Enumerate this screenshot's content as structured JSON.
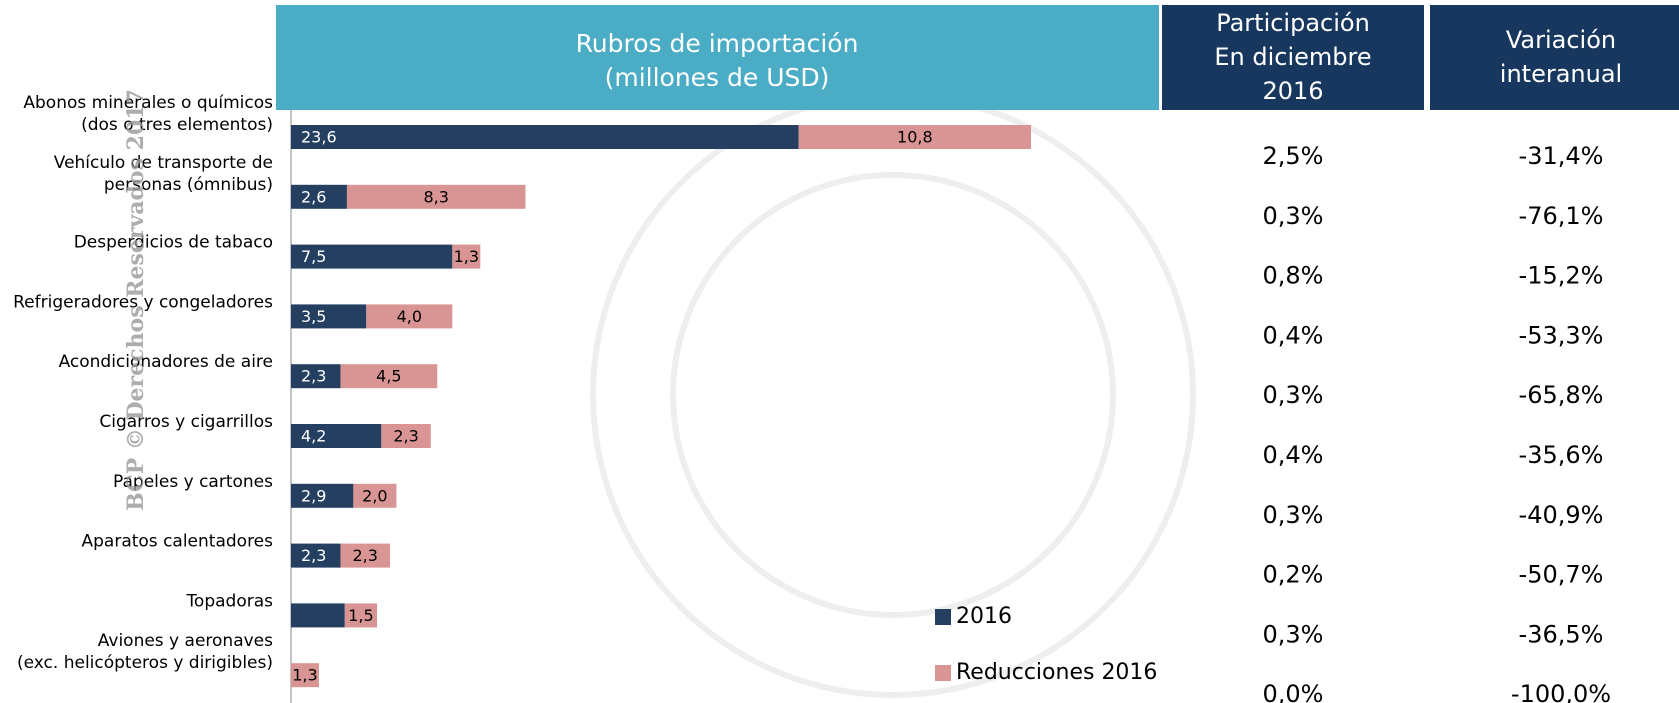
{
  "chart_data": {
    "type": "stacked-barh",
    "title": [
      "Rubros de importación",
      "(millones de USD)"
    ],
    "categories": [
      [
        "Abonos minerales o químicos",
        "(dos o tres elementos)"
      ],
      [
        "Vehículo de transporte de",
        "personas (ómnibus)"
      ],
      [
        "Desperdicios de tabaco"
      ],
      [
        "Refrigeradores y congeladores"
      ],
      [
        "Acondicionadores de aire"
      ],
      [
        "Cigarros y cigarrillos"
      ],
      [
        "Papeles y cartones"
      ],
      [
        "Aparatos calentadores"
      ],
      [
        "Topadoras"
      ],
      [
        "Aviones y aeronaves",
        "(exc. helicópteros y dirigibles)"
      ]
    ],
    "series": [
      {
        "name": "2016",
        "color": "#243f60",
        "values": [
          23.6,
          2.6,
          7.5,
          3.5,
          2.3,
          4.2,
          2.9,
          2.3,
          2.5,
          0
        ],
        "value_labels": [
          "23,6",
          "2,6",
          "7,5",
          "3,5",
          "2,3",
          "4,2",
          "2,9",
          "2,3",
          null,
          null
        ]
      },
      {
        "name": "Reducciones 2016",
        "color": "#d99594",
        "values": [
          10.8,
          8.3,
          1.3,
          4.0,
          4.5,
          2.3,
          2.0,
          2.3,
          1.5,
          1.3
        ],
        "value_labels": [
          "10,8",
          "8,3",
          "1,3",
          "4,0",
          "4,5",
          "2,3",
          "2,0",
          "2,3",
          "1,5",
          "1,3"
        ]
      }
    ],
    "legend": "bottom-right"
  },
  "table": {
    "headers": [
      [
        "Participación",
        "En diciembre",
        "2016"
      ],
      [
        "Variación",
        "interanual"
      ]
    ],
    "rows": [
      [
        "2,5%",
        "-31,4%"
      ],
      [
        "0,3%",
        "-76,1%"
      ],
      [
        "0,8%",
        "-15,2%"
      ],
      [
        "0,4%",
        "-53,3%"
      ],
      [
        "0,3%",
        "-65,8%"
      ],
      [
        "0,4%",
        "-35,6%"
      ],
      [
        "0,3%",
        "-40,9%"
      ],
      [
        "0,2%",
        "-50,7%"
      ],
      [
        "0,3%",
        "-36,5%"
      ],
      [
        "0,0%",
        "-100,0%"
      ]
    ]
  },
  "watermark": "BCP © Derechos Reservados 2017"
}
